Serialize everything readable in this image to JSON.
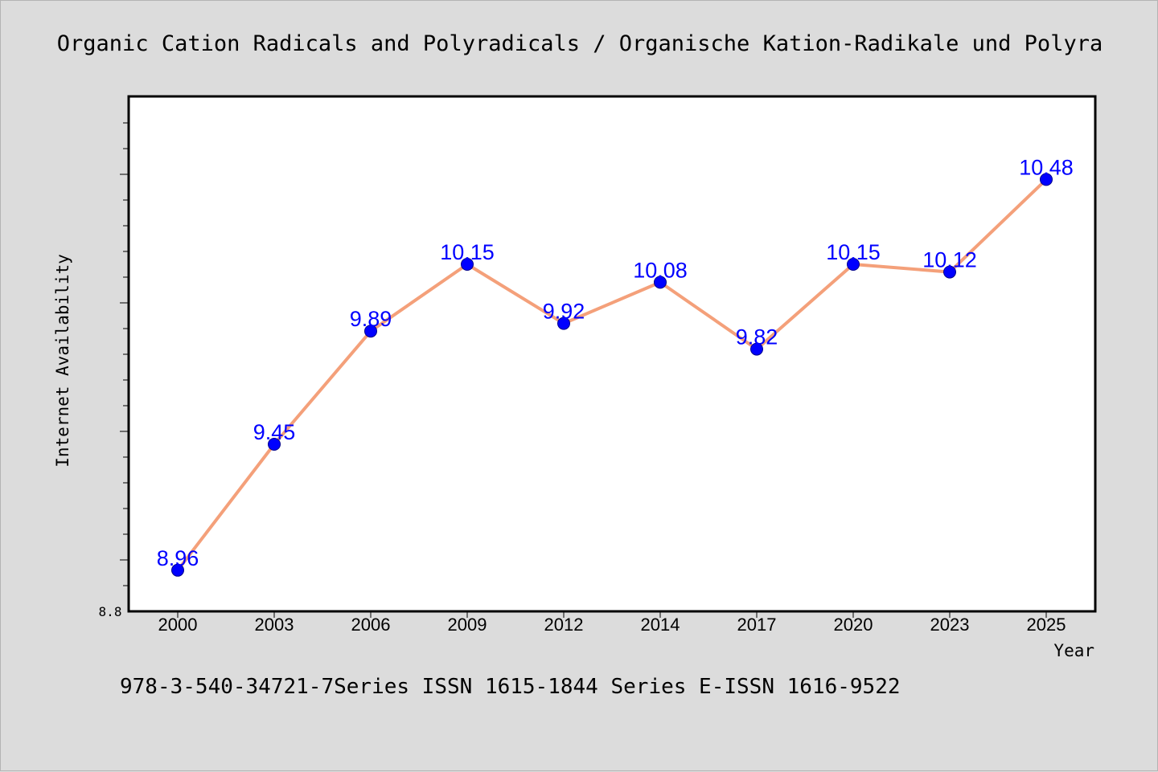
{
  "chart_data": {
    "type": "line",
    "title": "Organic Cation Radicals and Polyradicals / Organische Kation-Radikale und Polyra",
    "xlabel": "Year",
    "ylabel": "Internet Availability",
    "categories": [
      "2000",
      "2003",
      "2006",
      "2009",
      "2012",
      "2014",
      "2017",
      "2020",
      "2023",
      "2025"
    ],
    "series": [
      {
        "name": "",
        "values": [
          8.96,
          9.45,
          9.89,
          10.15,
          9.92,
          10.08,
          9.82,
          10.15,
          10.12,
          10.48
        ],
        "labels": [
          "8.96",
          "9.45",
          "9.89",
          "10.15",
          "9.92",
          "10.08",
          "9.82",
          "10.15",
          "10.12",
          "10.48"
        ]
      }
    ],
    "ylim": [
      8.8,
      10.8
    ],
    "yticks": [
      "8.8"
    ],
    "grid": false,
    "legend": "none",
    "line_color": "#f4a07a",
    "marker_color": "#0000ff",
    "label_color": "#0000ff"
  },
  "footer": "978-3-540-34721-7Series ISSN 1615-1844 Series E-ISSN 1616-9522"
}
